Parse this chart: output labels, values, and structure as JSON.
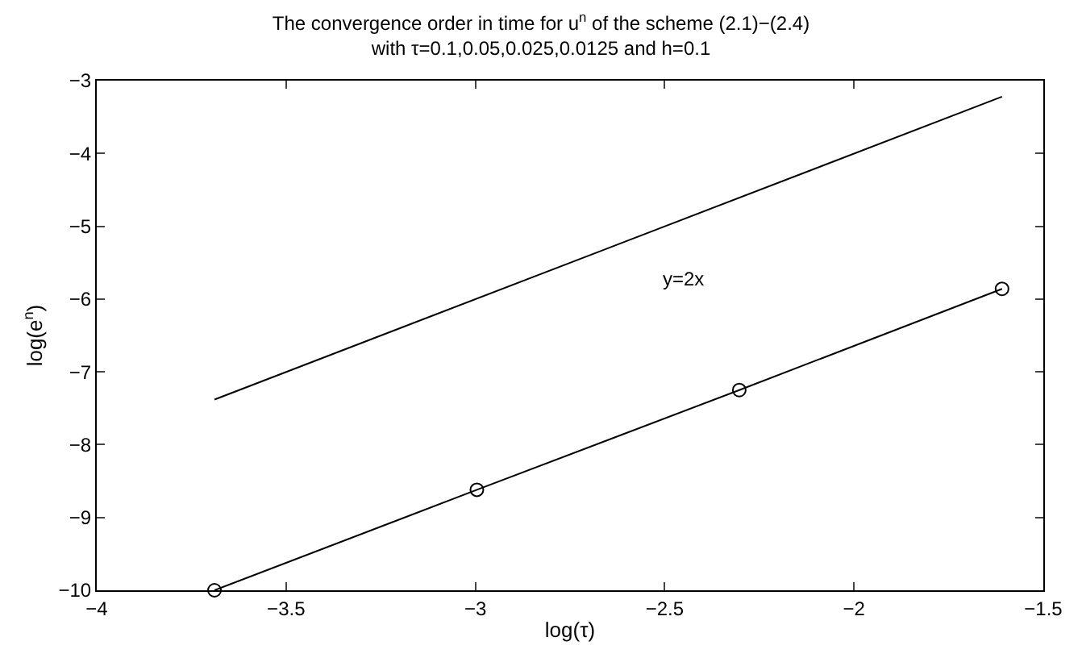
{
  "chart_data": {
    "type": "line",
    "title": "The convergence order in time for u$^{n}$ of the scheme (2.1)−(2.4)\nwith τ=0.1,0.05,0.025,0.0125 and h=0.1",
    "xlabel": "log(τ)",
    "ylabel": "log(e$^{n}$)",
    "xlim": [
      -4,
      -1.5
    ],
    "xticks": [
      -4,
      -3.5,
      -3,
      -2.5,
      -2,
      -1.5
    ],
    "ylim": [
      -10,
      -3
    ],
    "yticks": [
      -10,
      -9,
      -8,
      -7,
      -6,
      -5,
      -4,
      -3
    ],
    "line_style": "solid",
    "annotations": [
      "y=2x"
    ],
    "series": [
      {
        "color": "#000000",
        "marker": "none",
        "x": [
          -3.689,
          -1.609
        ],
        "values": [
          -7.38,
          -3.22
        ]
      },
      {
        "color": "#000000",
        "marker": "circle",
        "x": [
          -3.689,
          -2.996,
          -2.303,
          -1.609
        ],
        "values": [
          -10.0,
          -8.62,
          -7.25,
          -5.86
        ]
      }
    ]
  }
}
